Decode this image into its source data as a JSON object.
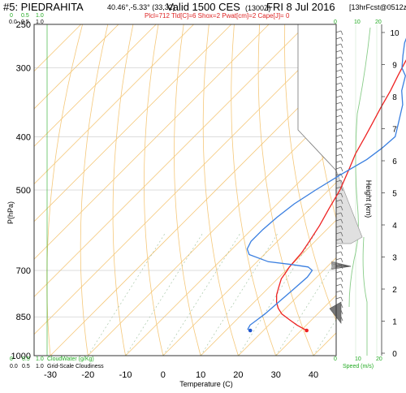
{
  "header": {
    "station": "#5: PIEDRAHITA",
    "coords": "40.46°,-5.33° (33,32)",
    "valid": "Valid 1500 CES",
    "utc": "(1300Z)",
    "date": "FRI 8 Jul 2016",
    "forecast": "[13hrFcst@0512z]",
    "indices": "Plcl=712 Tld[C]=6 Shox=2 Pwat[cm]=2 Cape[J]= 0"
  },
  "cloud_scale": {
    "top_green": [
      "0",
      "0.5",
      "1.0"
    ],
    "top_black": [
      "0.0",
      "0.5",
      "1.0"
    ],
    "bottom_green": [
      "0",
      "0.5",
      "1.0"
    ],
    "bottom_green_label": "CloudWater (g/Kg)",
    "bottom_black": [
      "0.0",
      "0.5",
      "1.0"
    ],
    "bottom_black_label": "Grid-Scale Cloudiness"
  },
  "speed_scale": {
    "top": [
      "0",
      "10",
      "20"
    ],
    "bottom": [
      "0",
      "10",
      "20"
    ],
    "label": "Speed (m/s)"
  },
  "colors": {
    "temperature": "#ee2222",
    "dewpoint": "#3a7fe0",
    "isotherm_adiabat": "#f5c87a",
    "grid": "#333333",
    "green": "#22aa22",
    "indices": "#dd2222"
  },
  "chart_data": {
    "type": "line",
    "title": "#5: PIEDRAHITA",
    "xlabel": "Temperature (C)",
    "ylabel": "P(hPa)",
    "y2label": "Height (km)",
    "xlim": [
      -33,
      48
    ],
    "ylim": [
      1000,
      250
    ],
    "y_scale": "log",
    "x_ticks": [
      -30,
      -20,
      -10,
      0,
      10,
      20,
      30,
      40
    ],
    "pressure_ticks": [
      250,
      300,
      400,
      500,
      700,
      850,
      1000
    ],
    "height_ticks": [
      0,
      1,
      2,
      3,
      4,
      5,
      6,
      7,
      8,
      9,
      10
    ],
    "series": [
      {
        "name": "Temperature",
        "points": [
          [
            31.5,
            900
          ],
          [
            27.5,
            880
          ],
          [
            24,
            860
          ],
          [
            20.5,
            840
          ],
          [
            18,
            820
          ],
          [
            16,
            800
          ],
          [
            14,
            775
          ],
          [
            12.5,
            750
          ],
          [
            11,
            725
          ],
          [
            10.5,
            705
          ],
          [
            10,
            690
          ],
          [
            9.5,
            650
          ],
          [
            8.5,
            620
          ],
          [
            7,
            580
          ],
          [
            5,
            540
          ],
          [
            3,
            500
          ],
          [
            0,
            460
          ],
          [
            -2.5,
            430
          ],
          [
            -4.5,
            400
          ],
          [
            -6,
            380
          ],
          [
            -8,
            355
          ],
          [
            -10,
            330
          ],
          [
            -12,
            310
          ],
          [
            -13.5,
            295
          ],
          [
            -15,
            280
          ],
          [
            -16.5,
            265
          ],
          [
            -17.5,
            250
          ]
        ]
      },
      {
        "name": "Dewpoint",
        "points": [
          [
            16.5,
            900
          ],
          [
            15.5,
            895
          ],
          [
            15,
            880
          ],
          [
            15.5,
            860
          ],
          [
            16,
            840
          ],
          [
            16.5,
            800
          ],
          [
            17,
            760
          ],
          [
            17.5,
            720
          ],
          [
            17,
            700
          ],
          [
            15,
            690
          ],
          [
            10,
            683
          ],
          [
            3,
            675
          ],
          [
            -4,
            655
          ],
          [
            -6,
            640
          ],
          [
            -7,
            620
          ],
          [
            -7,
            590
          ],
          [
            -6.5,
            560
          ],
          [
            -5.5,
            530
          ],
          [
            -3.5,
            500
          ],
          [
            -1,
            470
          ],
          [
            2,
            440
          ],
          [
            3,
            420
          ],
          [
            3.5,
            400
          ],
          [
            1,
            380
          ],
          [
            -3,
            350
          ],
          [
            -7,
            330
          ],
          [
            -10,
            310
          ],
          [
            -13,
            300
          ],
          [
            -16,
            285
          ],
          [
            -19,
            270
          ],
          [
            -22,
            250
          ]
        ]
      }
    ],
    "surface_markers": [
      {
        "name": "Surface temperature",
        "x": 31.5,
        "p": 900
      },
      {
        "name": "Surface dewpoint",
        "x": 16.5,
        "p": 900
      }
    ]
  }
}
